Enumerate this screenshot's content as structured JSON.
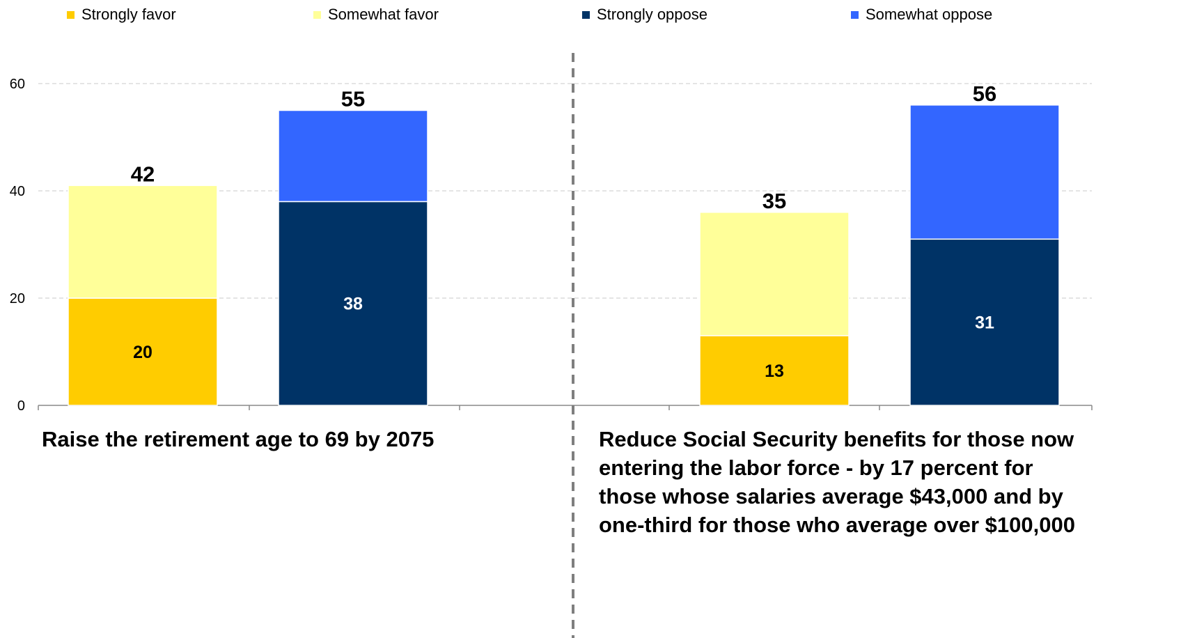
{
  "chart_data": {
    "type": "bar",
    "stacked": true,
    "ylim": [
      0,
      60
    ],
    "yticks": [
      0,
      20,
      40,
      60
    ],
    "grid": true,
    "legend_position": "top",
    "legend": [
      {
        "name": "Strongly favor",
        "color": "#FFCC00"
      },
      {
        "name": "Somewhat favor",
        "color": "#FFFF99"
      },
      {
        "name": "Strongly oppose",
        "color": "#003366"
      },
      {
        "name": "Somewhat oppose",
        "color": "#3366FF"
      }
    ],
    "groups": [
      {
        "label": "Raise the retirement age to 69 by 2075",
        "bars": [
          {
            "segments": [
              {
                "series": "Strongly favor",
                "value": 20,
                "label": "20"
              },
              {
                "series": "Somewhat favor",
                "value": 21,
                "label": ""
              }
            ],
            "total_label": "42"
          },
          {
            "segments": [
              {
                "series": "Strongly oppose",
                "value": 38,
                "label": "38"
              },
              {
                "series": "Somewhat oppose",
                "value": 17,
                "label": ""
              }
            ],
            "total_label": "55"
          }
        ]
      },
      {
        "label": "Reduce Social Security benefits for those now entering the labor force - by 17 percent for those whose salaries average $43,000 and by one-third for those who average over $100,000",
        "bars": [
          {
            "segments": [
              {
                "series": "Strongly favor",
                "value": 13,
                "label": "13"
              },
              {
                "series": "Somewhat favor",
                "value": 23,
                "label": ""
              }
            ],
            "total_label": "35"
          },
          {
            "segments": [
              {
                "series": "Strongly oppose",
                "value": 31,
                "label": "31"
              },
              {
                "series": "Somewhat oppose",
                "value": 25,
                "label": ""
              }
            ],
            "total_label": "56"
          }
        ]
      }
    ]
  }
}
